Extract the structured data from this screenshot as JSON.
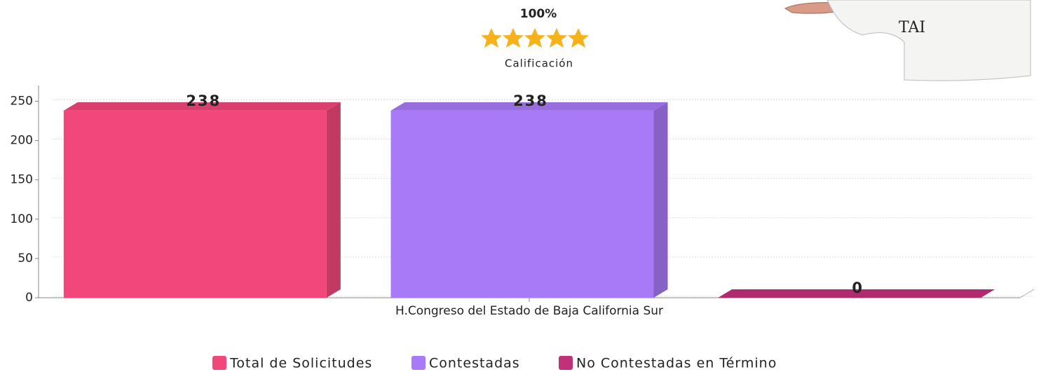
{
  "rating": {
    "percent": "100%",
    "label": "Calificación"
  },
  "chart_data": {
    "type": "bar",
    "categories": [
      "H.Congreso del Estado de Baja California Sur"
    ],
    "series": [
      {
        "name": "Total de Solicitudes",
        "color": "#f2477a",
        "values": [
          238
        ]
      },
      {
        "name": "Contestadas",
        "color": "#a97af8",
        "values": [
          238
        ]
      },
      {
        "name": "No Contestadas en Término",
        "color": "#c2307a",
        "values": [
          0
        ]
      }
    ],
    "ylim": [
      0,
      270
    ],
    "yticks": [
      0,
      50,
      100,
      150,
      200,
      250
    ],
    "grid": true
  }
}
